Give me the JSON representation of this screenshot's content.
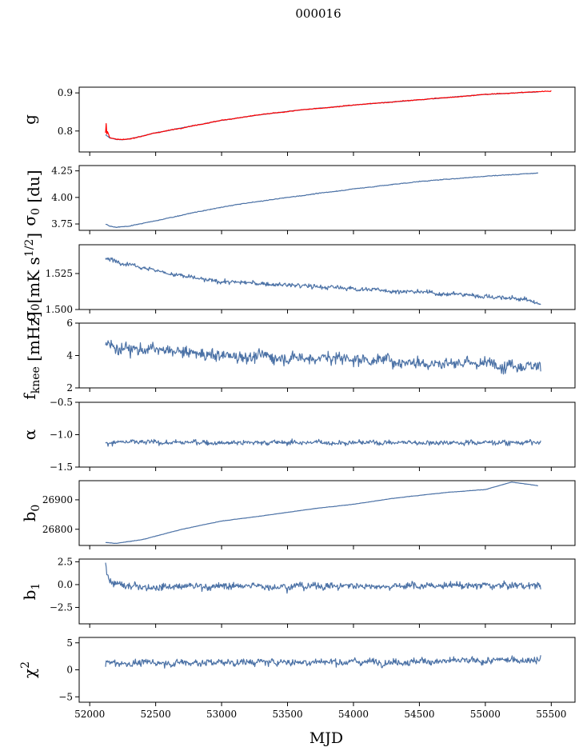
{
  "figure_title": "000016",
  "chart_data": {
    "type": "line",
    "title": "000016",
    "xlabel": "MJD",
    "xlim": [
      51920,
      55680
    ],
    "xticks": [
      52000,
      52500,
      53000,
      53500,
      54000,
      54500,
      55000,
      55500
    ],
    "xtick_labels": [
      "52000",
      "52500",
      "53000",
      "53500",
      "54000",
      "54500",
      "55000",
      "55500"
    ],
    "data_x_range": [
      52120,
      55420
    ],
    "colors": {
      "main": "#4c72a6",
      "fit": "#ff0000"
    },
    "panels": [
      {
        "id": "g",
        "ylabel": "g",
        "ylabel_sub": "",
        "ylabel_sup": "",
        "ylim": [
          0.745,
          0.915
        ],
        "yticks": [
          0.8,
          0.9
        ],
        "ytick_labels": [
          "0.8",
          "0.9"
        ],
        "series": [
          {
            "name": "g",
            "color": "#4c72a6",
            "noise": 0.0008,
            "x": [
              52120,
              52150,
              52200,
              52250,
              52300,
              52500,
              52800,
              53000,
              53300,
              53600,
              54000,
              54500,
              55000,
              55400
            ],
            "y": [
              0.79,
              0.782,
              0.778,
              0.777,
              0.779,
              0.795,
              0.815,
              0.828,
              0.843,
              0.855,
              0.868,
              0.882,
              0.896,
              0.903
            ]
          },
          {
            "name": "g (red)",
            "color": "#ff0000",
            "noise": 0.0012,
            "x": [
              52120,
              52125,
              52130,
              52135,
              52150,
              52200,
              52250,
              52300,
              52500,
              52800,
              53000,
              53300,
              53600,
              54000,
              54500,
              55000,
              55500
            ],
            "y": [
              0.795,
              0.82,
              0.79,
              0.8,
              0.783,
              0.778,
              0.777,
              0.779,
              0.795,
              0.815,
              0.828,
              0.843,
              0.855,
              0.868,
              0.882,
              0.896,
              0.905
            ]
          }
        ]
      },
      {
        "id": "sigma0-du",
        "ylabel": "σ",
        "ylabel_sub": "0",
        "ylabel_sup": "",
        "ylabel_suffix": " [du]",
        "ylim": [
          3.69,
          4.3
        ],
        "yticks": [
          3.75,
          4.0,
          4.25
        ],
        "ytick_labels": [
          "3.75",
          "4.00",
          "4.25"
        ],
        "series": [
          {
            "name": "sigma0 du",
            "color": "#4c72a6",
            "noise": 0.004,
            "x": [
              52120,
              52150,
              52200,
              52300,
              52500,
              52800,
              53100,
              53500,
              54000,
              54500,
              55000,
              55400
            ],
            "y": [
              3.75,
              3.73,
              3.72,
              3.73,
              3.78,
              3.86,
              3.93,
              4.0,
              4.08,
              4.15,
              4.2,
              4.23
            ]
          }
        ]
      },
      {
        "id": "sigma0-mk",
        "ylabel": "σ",
        "ylabel_sub": "0",
        "ylabel_sup": "",
        "ylabel_suffix": "[mK s",
        "ylabel_sup2": "1/2",
        "ylabel_end": "]",
        "ylim": [
          1.5,
          1.545
        ],
        "yticks": [
          1.5,
          1.525
        ],
        "ytick_labels": [
          "1.500",
          "1.525"
        ],
        "series": [
          {
            "name": "sigma0 mK",
            "color": "#4c72a6",
            "noise": 0.0018,
            "x": [
              52120,
              52300,
              52600,
              52900,
              53300,
              53700,
              54100,
              54500,
              54900,
              55300,
              55420
            ],
            "y": [
              1.535,
              1.532,
              1.525,
              1.52,
              1.518,
              1.516,
              1.514,
              1.512,
              1.51,
              1.507,
              1.504
            ]
          }
        ]
      },
      {
        "id": "fknee",
        "ylabel": "f",
        "ylabel_sub": "knee",
        "ylabel_sup": "",
        "ylabel_suffix": " [mHz]",
        "ylim": [
          2,
          6
        ],
        "yticks": [
          2,
          4,
          6
        ],
        "ytick_labels": [
          "2",
          "4",
          "6"
        ],
        "series": [
          {
            "name": "fknee",
            "color": "#4c72a6",
            "noise": 0.45,
            "x": [
              52120,
              52500,
              53000,
              53500,
              54000,
              54500,
              55000,
              55420
            ],
            "y": [
              4.6,
              4.3,
              4.0,
              3.9,
              3.8,
              3.6,
              3.5,
              3.4
            ]
          }
        ]
      },
      {
        "id": "alpha",
        "ylabel": "α",
        "ylabel_sub": "",
        "ylabel_sup": "",
        "ylim": [
          -1.5,
          -0.5
        ],
        "yticks": [
          -1.5,
          -1.0,
          -0.5
        ],
        "ytick_labels": [
          "−1.5",
          "−1.0",
          "−0.5"
        ],
        "series": [
          {
            "name": "alpha",
            "color": "#4c72a6",
            "noise": 0.045,
            "x": [
              52120,
              55420
            ],
            "y": [
              -1.12,
              -1.12
            ]
          }
        ]
      },
      {
        "id": "b0",
        "ylabel": "b",
        "ylabel_sub": "0",
        "ylabel_sup": "",
        "ylim": [
          26745,
          26965
        ],
        "yticks": [
          26800,
          26900
        ],
        "ytick_labels": [
          "26800",
          "26900"
        ],
        "series": [
          {
            "name": "b0",
            "color": "#4c72a6",
            "noise": 0.6,
            "x": [
              52120,
              52200,
              52400,
              52700,
              53000,
              53300,
              53700,
              54000,
              54300,
              54700,
              55000,
              55200,
              55400
            ],
            "y": [
              26755,
              26752,
              26765,
              26800,
              26828,
              26845,
              26870,
              26885,
              26905,
              26925,
              26935,
              26960,
              26948
            ]
          }
        ]
      },
      {
        "id": "b1",
        "ylabel": "b",
        "ylabel_sub": "1",
        "ylabel_sup": "",
        "ylim": [
          -4.3,
          2.8
        ],
        "yticks": [
          -2.5,
          0.0,
          2.5
        ],
        "ytick_labels": [
          "−2.5",
          "0.0",
          "2.5"
        ],
        "series": [
          {
            "name": "b1",
            "color": "#4c72a6",
            "noise": 0.45,
            "x": [
              52120,
              52130,
              52160,
              52250,
              55420
            ],
            "y": [
              2.5,
              1.2,
              0.2,
              -0.2,
              -0.1
            ]
          }
        ]
      },
      {
        "id": "chi2",
        "ylabel": "χ",
        "ylabel_sub": "",
        "ylabel_sup": "2",
        "ylim": [
          -6,
          6
        ],
        "yticks": [
          -5,
          0,
          5
        ],
        "ytick_labels": [
          "−5",
          "0",
          "5"
        ],
        "series": [
          {
            "name": "chi2",
            "color": "#4c72a6",
            "noise": 0.75,
            "x": [
              52120,
              53000,
              54000,
              55000,
              55420
            ],
            "y": [
              1.2,
              1.4,
              1.5,
              1.6,
              2.0
            ]
          }
        ]
      }
    ]
  }
}
